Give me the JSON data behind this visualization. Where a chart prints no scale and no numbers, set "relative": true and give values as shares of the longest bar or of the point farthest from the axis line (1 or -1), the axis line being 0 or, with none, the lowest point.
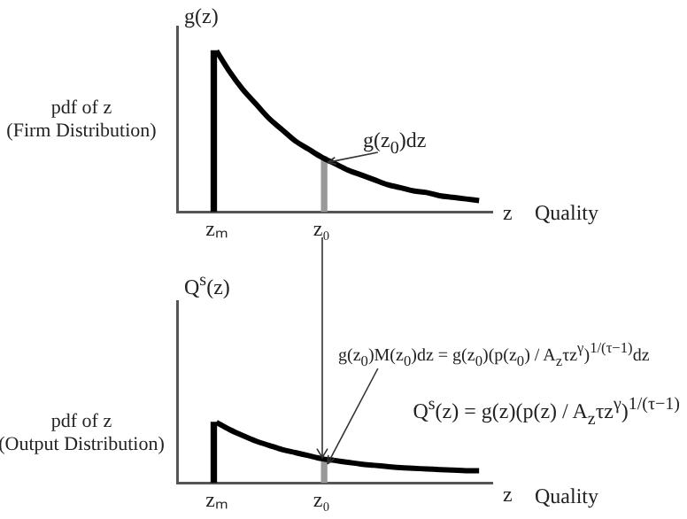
{
  "chart_data": [
    {
      "type": "line",
      "relative": true,
      "ylabel": "g(z)",
      "xlabel": "z",
      "grid": false,
      "legend": false,
      "marker": "none",
      "categories": [
        null,
        null,
        null,
        "zₘ",
        null,
        null,
        null,
        null,
        null,
        null,
        null,
        "z₀",
        null,
        null,
        null,
        null,
        null,
        null,
        null,
        null,
        null,
        null,
        null,
        null,
        null
      ],
      "series": [
        {
          "type": "line",
          "color": "#000000",
          "values": [
            null,
            null,
            null,
            1,
            0.87,
            0.76,
            0.67,
            0.58,
            0.51,
            0.44,
            0.39,
            0.34,
            0.3,
            0.26,
            0.23,
            0.2,
            0.17,
            0.15,
            0.13,
            0.12,
            0.1,
            0.09,
            0.08,
            0.07,
            null
          ]
        },
        {
          "type": "bar",
          "color": "#000000",
          "values": [
            null,
            null,
            null,
            1,
            null,
            null,
            null,
            null,
            null,
            null,
            null,
            null,
            null,
            null,
            null,
            null,
            null,
            null,
            null,
            null,
            null,
            null,
            null,
            null,
            null
          ]
        },
        {
          "type": "bar",
          "color": "#999999",
          "values": [
            null,
            null,
            null,
            null,
            null,
            null,
            null,
            null,
            null,
            null,
            null,
            0.34,
            null,
            null,
            null,
            null,
            null,
            null,
            null,
            null,
            null,
            null,
            null,
            null,
            null
          ]
        }
      ],
      "annotations": [
        "pdf of z",
        "(Firm Distribution)",
        "Quality",
        {
          "text": "g(z$_{0}$)dz",
          "x": "z₀",
          "y": 0.34
        }
      ]
    },
    {
      "type": "line",
      "relative": true,
      "ylabel": "Q$^{s}$(z)",
      "xlabel": "z",
      "grid": false,
      "legend": false,
      "marker": "none",
      "categories": [
        null,
        null,
        null,
        "zₘ",
        null,
        null,
        null,
        null,
        null,
        null,
        null,
        "z₀",
        null,
        null,
        null,
        null,
        null,
        null,
        null,
        null,
        null,
        null,
        null,
        null,
        null
      ],
      "series": [
        {
          "type": "line",
          "color": "#000000",
          "values": [
            null,
            null,
            null,
            1,
            0.88,
            0.78,
            0.69,
            0.62,
            0.55,
            0.5,
            0.45,
            0.4,
            0.37,
            0.34,
            0.31,
            0.29,
            0.27,
            0.25,
            0.24,
            0.23,
            0.22,
            0.21,
            0.2,
            0.2,
            null
          ]
        },
        {
          "type": "bar",
          "color": "#000000",
          "values": [
            null,
            null,
            null,
            1,
            null,
            null,
            null,
            null,
            null,
            null,
            null,
            null,
            null,
            null,
            null,
            null,
            null,
            null,
            null,
            null,
            null,
            null,
            null,
            null,
            null
          ]
        },
        {
          "type": "bar",
          "color": "#999999",
          "values": [
            null,
            null,
            null,
            null,
            null,
            null,
            null,
            null,
            null,
            null,
            null,
            0.4,
            null,
            null,
            null,
            null,
            null,
            null,
            null,
            null,
            null,
            null,
            null,
            null,
            null
          ]
        }
      ],
      "annotations": [
        "pdf of z",
        "(Output Distribution)",
        "Quality",
        "g(z$_{0}$)M(z$_{0}$)dz = g(z$_{0}$)(p(z$_{0}$) / A$_{z}$τz$^{γ}$)$^{1/(τ−1)}$dz",
        "Q$^{s}$(z) = g(z)(p(z) / A$_{z}$τz$^{γ}$)$^{1/(τ−1)}$"
      ]
    }
  ]
}
